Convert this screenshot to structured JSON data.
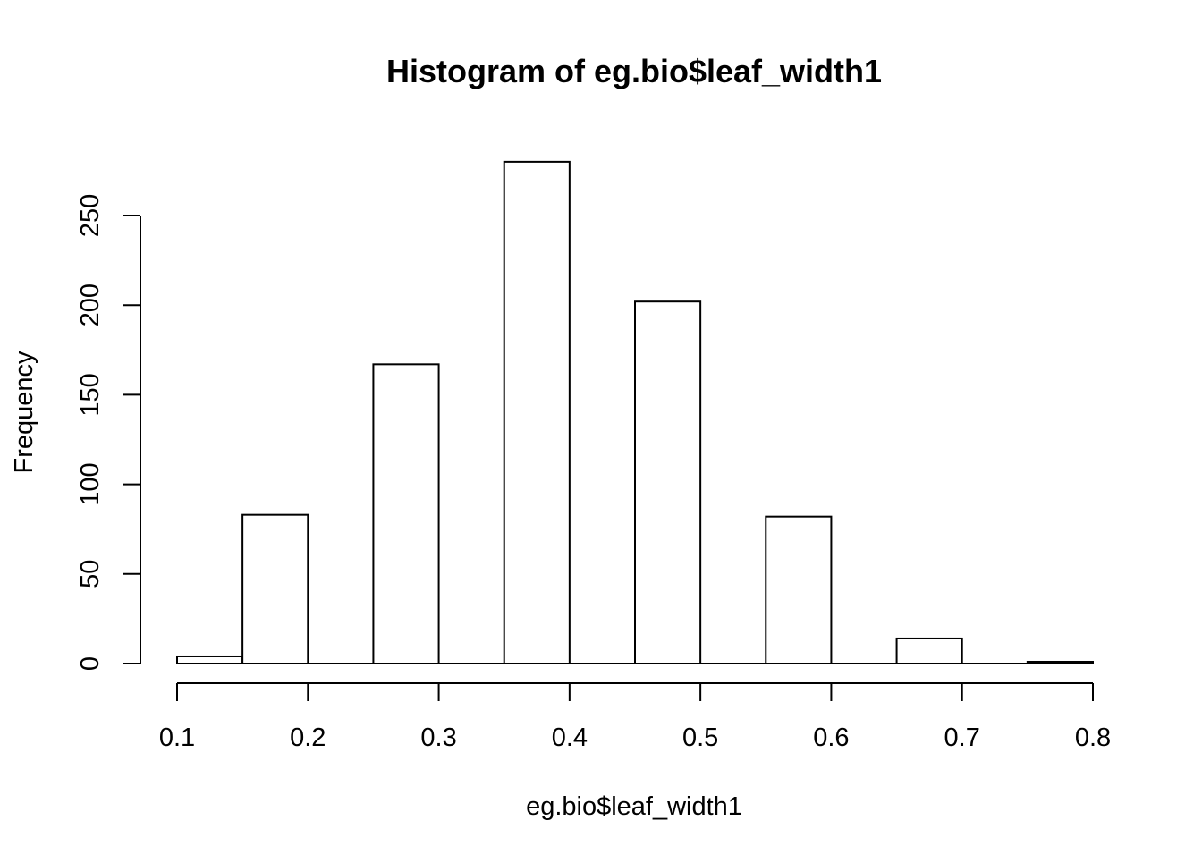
{
  "chart_data": {
    "type": "bar",
    "subtype": "histogram",
    "title": "Histogram of eg.bio$leaf_width1",
    "xlabel": "eg.bio$leaf_width1",
    "ylabel": "Frequency",
    "bins": [
      {
        "from": 0.1,
        "to": 0.15,
        "count": 4
      },
      {
        "from": 0.15,
        "to": 0.2,
        "count": 83
      },
      {
        "from": 0.2,
        "to": 0.25,
        "count": 0
      },
      {
        "from": 0.25,
        "to": 0.3,
        "count": 167
      },
      {
        "from": 0.3,
        "to": 0.35,
        "count": 0
      },
      {
        "from": 0.35,
        "to": 0.4,
        "count": 280
      },
      {
        "from": 0.4,
        "to": 0.45,
        "count": 0
      },
      {
        "from": 0.45,
        "to": 0.5,
        "count": 202
      },
      {
        "from": 0.5,
        "to": 0.55,
        "count": 0
      },
      {
        "from": 0.55,
        "to": 0.6,
        "count": 82
      },
      {
        "from": 0.6,
        "to": 0.65,
        "count": 0
      },
      {
        "from": 0.65,
        "to": 0.7,
        "count": 14
      },
      {
        "from": 0.7,
        "to": 0.75,
        "count": 0
      },
      {
        "from": 0.75,
        "to": 0.8,
        "count": 1
      }
    ],
    "xlim": [
      0.1,
      0.8
    ],
    "ylim": [
      0,
      280
    ],
    "x_ticks": [
      0.1,
      0.2,
      0.3,
      0.4,
      0.5,
      0.6,
      0.7,
      0.8
    ],
    "x_tick_labels": [
      "0.1",
      "0.2",
      "0.3",
      "0.4",
      "0.5",
      "0.6",
      "0.7",
      "0.8"
    ],
    "y_ticks": [
      0,
      50,
      100,
      150,
      200,
      250
    ],
    "y_tick_labels": [
      "0",
      "50",
      "100",
      "150",
      "200",
      "250"
    ],
    "grid": false,
    "bar_fill": "#ffffff",
    "bar_stroke": "#000000"
  }
}
